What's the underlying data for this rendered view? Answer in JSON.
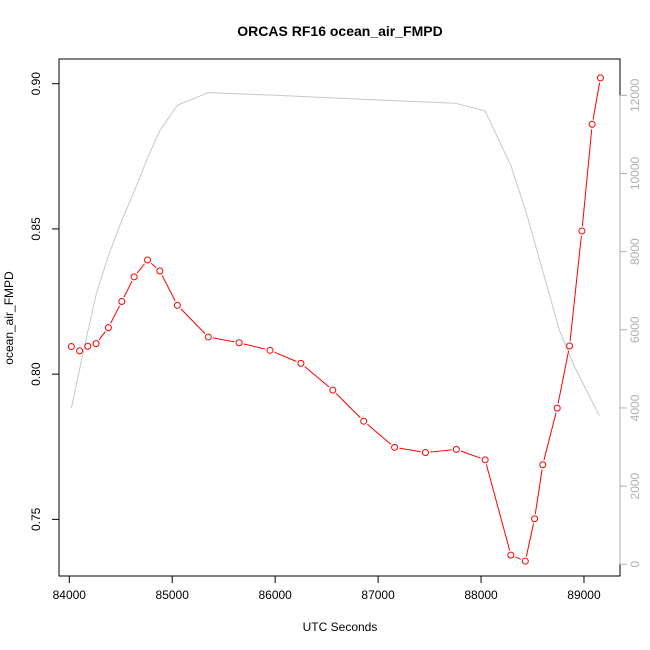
{
  "chart_data": {
    "type": "line",
    "title": "ORCAS RF16 ocean_air_FMPD",
    "xlabel": "UTC Seconds",
    "ylabel": "ocean_air_FMPD",
    "xlim": [
      83900,
      89350
    ],
    "ylim": [
      0.7305,
      0.9085
    ],
    "y2lim": [
      -300,
      12930
    ],
    "x_ticks": [
      84000,
      85000,
      86000,
      87000,
      88000,
      89000
    ],
    "y_ticks": [
      0.75,
      0.8,
      0.85,
      0.9
    ],
    "y_tick_labels": [
      "0.75",
      "0.80",
      "0.85",
      "0.90"
    ],
    "y2_ticks": [
      0,
      2000,
      4000,
      6000,
      8000,
      10000,
      12000
    ],
    "colors": {
      "primary": "#ff0000",
      "secondary": "#c8c8c8",
      "secondary_ticks": "#b0b0b0"
    },
    "series": [
      {
        "axis": "left",
        "style": "line-with-open-circles",
        "color": "#ff0000",
        "x": [
          84020,
          84100,
          84180,
          84260,
          84380,
          84510,
          84630,
          84760,
          84880,
          85050,
          85350,
          85650,
          85950,
          86250,
          86560,
          86860,
          87160,
          87460,
          87760,
          88040,
          88290,
          88430,
          88520,
          88600,
          88740,
          88860,
          88980,
          89080,
          89160
        ],
        "y": [
          0.8095,
          0.808,
          0.8096,
          0.8105,
          0.816,
          0.825,
          0.8335,
          0.8393,
          0.8355,
          0.8237,
          0.8128,
          0.8108,
          0.8082,
          0.8037,
          0.7945,
          0.7838,
          0.7748,
          0.773,
          0.7741,
          0.7705,
          0.7377,
          0.7356,
          0.7502,
          0.7688,
          0.7883,
          0.8097,
          0.8493,
          0.886,
          0.902
        ]
      },
      {
        "axis": "right",
        "style": "line",
        "color": "#c8c8c8",
        "x": [
          84020,
          84150,
          84260,
          84380,
          84510,
          84640,
          84760,
          84880,
          85050,
          85350,
          86000,
          87000,
          87750,
          88040,
          88290,
          88440,
          88600,
          88760,
          88900,
          89150
        ],
        "y": [
          4000,
          5600,
          6900,
          7900,
          8800,
          9600,
          10400,
          11100,
          11750,
          12070,
          12000,
          11880,
          11800,
          11600,
          10200,
          9000,
          7500,
          6000,
          5100,
          3800
        ]
      }
    ]
  }
}
